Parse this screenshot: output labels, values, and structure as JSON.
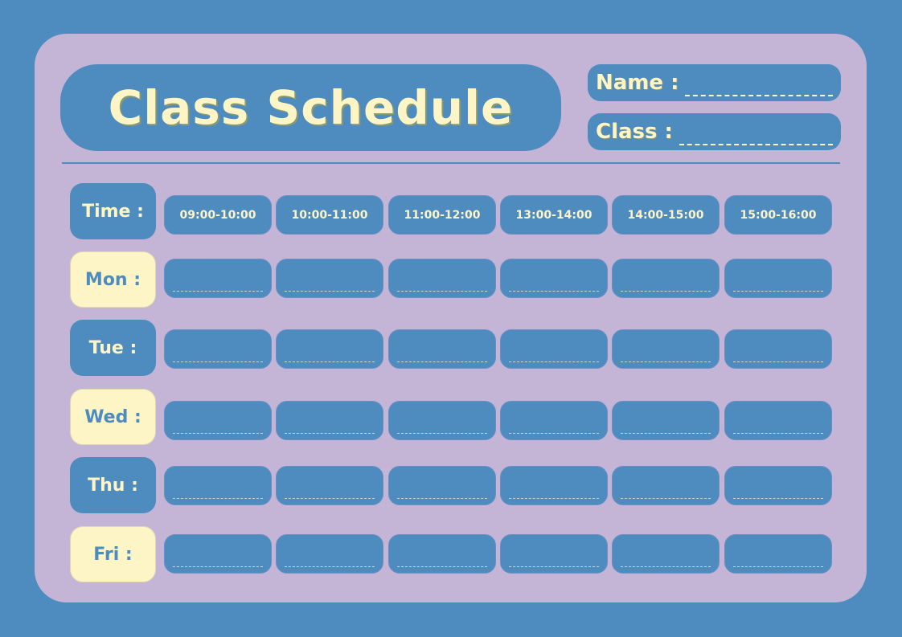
{
  "title": "Class Schedule",
  "fields": {
    "name_label": "Name :",
    "class_label": "Class :"
  },
  "time_label": "Time :",
  "times": [
    "09:00-10:00",
    "10:00-11:00",
    "11:00-12:00",
    "13:00-14:00",
    "14:00-15:00",
    "15:00-16:00"
  ],
  "days": [
    "Mon :",
    "Tue :",
    "Wed :",
    "Thu :",
    "Fri :"
  ],
  "colors": {
    "background": "#4e8bbf",
    "card": "#c4b5d6",
    "accent": "#fdf5c6"
  }
}
